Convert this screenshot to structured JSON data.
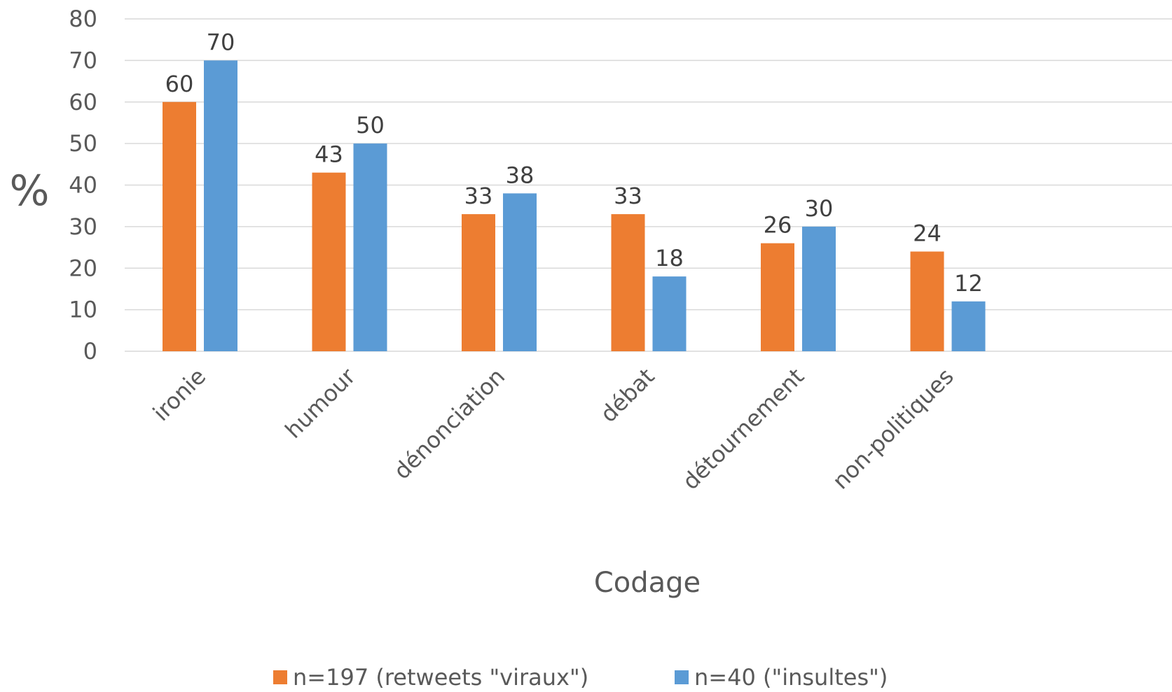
{
  "chart_data": {
    "type": "bar",
    "categories": [
      "ironie",
      "humour",
      "dénonciation",
      "débat",
      "détournement",
      "non-politiques"
    ],
    "series": [
      {
        "name": "n=197 (retweets \"viraux\")",
        "values": [
          60,
          43,
          33,
          33,
          26,
          24
        ],
        "color": "#ED7D31"
      },
      {
        "name": "n=40 (\"insultes\")",
        "values": [
          70,
          50,
          38,
          18,
          30,
          12
        ],
        "color": "#5B9BD5"
      }
    ],
    "title": "",
    "xlabel": "Codage",
    "ylabel": "%",
    "ylim": [
      0,
      80
    ],
    "yticks": [
      0,
      10,
      20,
      30,
      40,
      50,
      60,
      70,
      80
    ],
    "grid": true,
    "legend_position": "bottom",
    "data_labels": true
  }
}
